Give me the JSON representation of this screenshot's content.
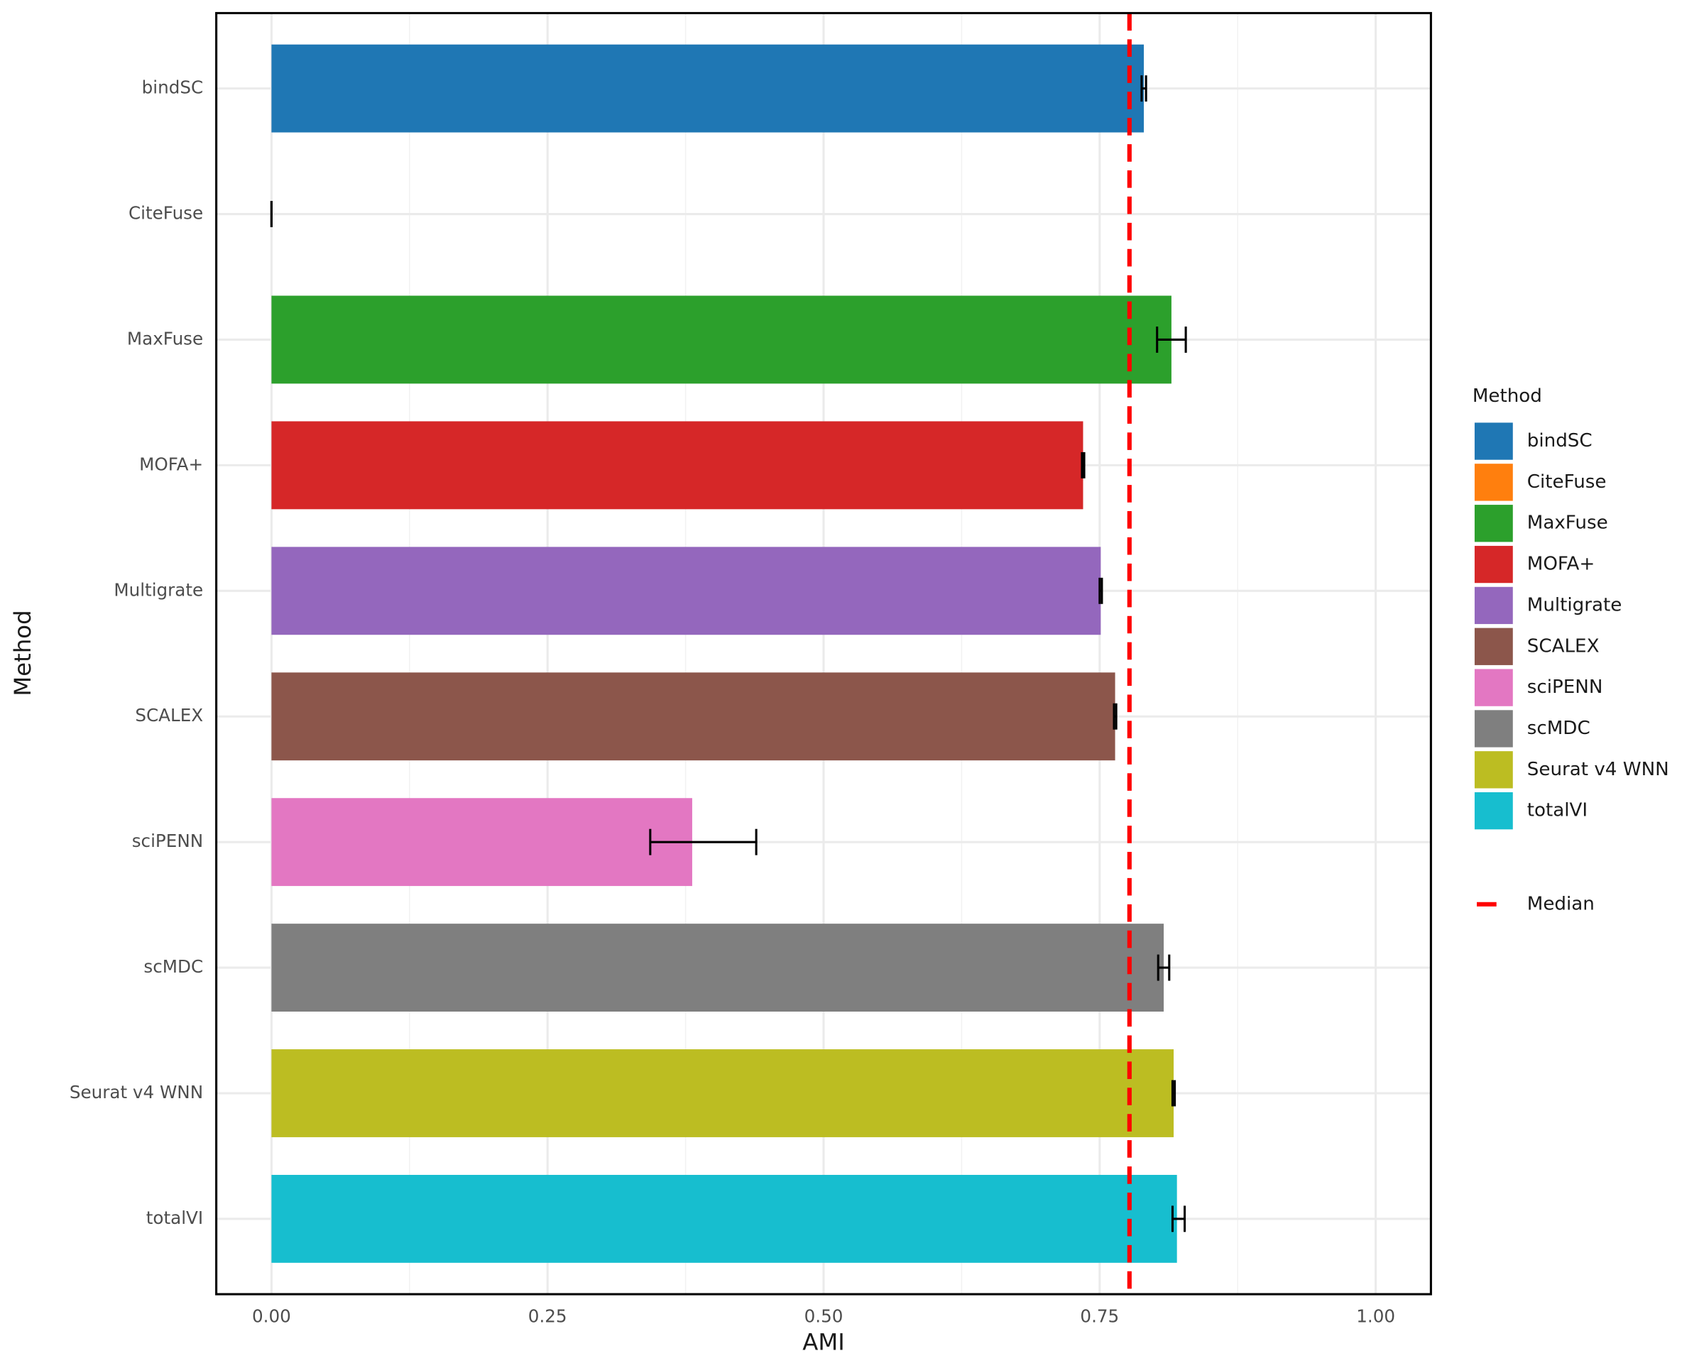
{
  "chart_data": {
    "type": "bar",
    "orientation": "horizontal",
    "x_label": "AMI",
    "y_label": "Method",
    "legend_title": "Method",
    "categories": [
      "bindSC",
      "CiteFuse",
      "MaxFuse",
      "MOFA+",
      "Multigrate",
      "SCALEX",
      "sciPENN",
      "scMDC",
      "Seurat v4 WNN",
      "totalVI"
    ],
    "values": [
      0.79,
      0,
      0.815,
      0.735,
      0.751,
      0.764,
      0.381,
      0.808,
      0.817,
      0.82
    ],
    "error_min": [
      0.788,
      0,
      0.802,
      0.734,
      0.75,
      0.763,
      0.343,
      0.803,
      0.816,
      0.816
    ],
    "error_max": [
      0.792,
      0,
      0.828,
      0.736,
      0.752,
      0.765,
      0.439,
      0.813,
      0.818,
      0.827
    ],
    "colors": [
      "#1f77b4",
      "#ff7f0e",
      "#2ca02c",
      "#d62728",
      "#9467bd",
      "#8c564b",
      "#e377c2",
      "#7f7f7f",
      "#bcbd22",
      "#17becf"
    ],
    "median": {
      "name": "Median",
      "value": 0.777,
      "color": "#ff0000"
    },
    "xlim": [
      -0.05,
      1.05
    ],
    "xticks": [
      {
        "value": 0,
        "label": "0.00"
      },
      {
        "value": 0.25,
        "label": "0.25"
      },
      {
        "value": 0.5,
        "label": "0.50"
      },
      {
        "value": 0.75,
        "label": "0.75"
      },
      {
        "value": 1,
        "label": "1.00"
      }
    ],
    "grid": true
  }
}
